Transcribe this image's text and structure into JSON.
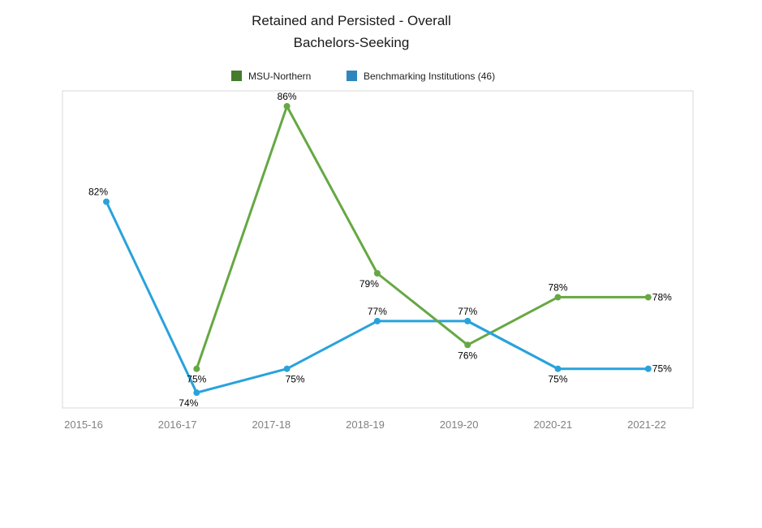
{
  "title": {
    "line1": "Retained and Persisted - Overall",
    "line2": "Bachelors-Seeking"
  },
  "legend": [
    {
      "label": "MSU-Northern",
      "color": "#447C2C"
    },
    {
      "label": "Benchmarking Institutions (46)",
      "color": "#2E86BD"
    }
  ],
  "chart_data": {
    "type": "line",
    "title": "Retained and Persisted - Overall Bachelors-Seeking",
    "categories": [
      "2015-16",
      "2016-17",
      "2017-18",
      "2018-19",
      "2019-20",
      "2020-21",
      "2021-22"
    ],
    "series": [
      {
        "name": "MSU-Northern",
        "color": "#66A843",
        "values": [
          null,
          75,
          86,
          79,
          76,
          78,
          78
        ],
        "point_labels": [
          null,
          "75%",
          "86%",
          "79%",
          "76%",
          "78%",
          "78%"
        ],
        "label_pos": [
          null,
          "below",
          "above",
          "below-left",
          "below",
          "above",
          "right"
        ]
      },
      {
        "name": "Benchmarking Institutions (46)",
        "color": "#29A2DC",
        "values": [
          82,
          74,
          75,
          77,
          77,
          75,
          75
        ],
        "point_labels": [
          "82%",
          "74%",
          "75%",
          "77%",
          "77%",
          "75%",
          "75%"
        ],
        "label_pos": [
          "above-left",
          "below-left",
          "below-right",
          "above",
          "above",
          "below",
          "right"
        ]
      }
    ],
    "ylim": [
      73,
      87
    ],
    "xlabel": "",
    "ylabel": "",
    "grid": false,
    "legend_position": "top",
    "plot_border_color": "#D9D9D9",
    "axis_label_color": "#808080",
    "data_label_color": "#000000"
  }
}
